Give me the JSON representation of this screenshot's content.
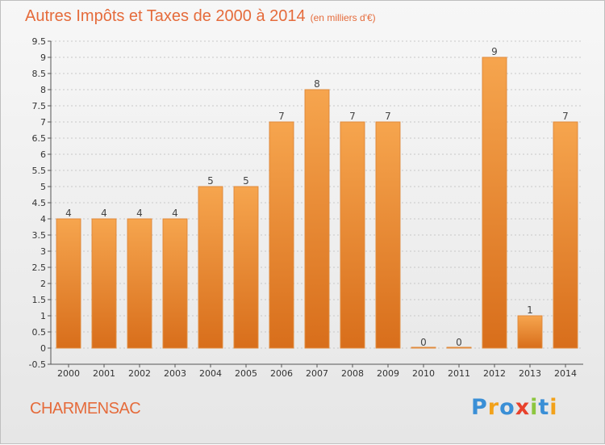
{
  "title": "Autres Impôts et Taxes de 2000 à 2014",
  "unit_label": "(en milliers d'€)",
  "commune": "CHARMENSAC",
  "logo": {
    "letters": [
      "P",
      "r",
      "o",
      "x",
      "i",
      "t",
      "i"
    ],
    "colors": [
      "#3a8fd6",
      "#f2a21b",
      "#3a8fd6",
      "#e8412c",
      "#8dc63f",
      "#3a8fd6",
      "#f2a21b"
    ]
  },
  "colors": {
    "bar_top": "#f6a54e",
    "bar_bottom": "#d86e1b",
    "title": "#e56b3b",
    "grid": "#c8c8c8"
  },
  "chart_data": {
    "type": "bar",
    "title": "Autres Impôts et Taxes de 2000 à 2014",
    "categories": [
      "2000",
      "2001",
      "2002",
      "2003",
      "2004",
      "2005",
      "2006",
      "2007",
      "2008",
      "2009",
      "2010",
      "2011",
      "2012",
      "2013",
      "2014"
    ],
    "values": [
      4,
      4,
      4,
      4,
      5,
      5,
      7,
      8,
      7,
      7,
      0,
      0,
      9,
      1,
      7
    ],
    "data_labels": [
      "4",
      "4",
      "4",
      "4",
      "5",
      "5",
      "7",
      "8",
      "7",
      "7",
      "0",
      "0",
      "9",
      "1",
      "7"
    ],
    "ylim": [
      -0.5,
      9.5
    ],
    "yticks": [
      "9.5",
      "9",
      "8.5",
      "8",
      "7.5",
      "7",
      "6.5",
      "6",
      "5.5",
      "5",
      "4.5",
      "4",
      "3.5",
      "3",
      "2.5",
      "2",
      "1.5",
      "1",
      "0.5",
      "0",
      "-0.5"
    ],
    "ytick_values": [
      9.5,
      9,
      8.5,
      8,
      7.5,
      7,
      6.5,
      6,
      5.5,
      5,
      4.5,
      4,
      3.5,
      3,
      2.5,
      2,
      1.5,
      1,
      0.5,
      0,
      -0.5
    ],
    "grid": true,
    "legend": "none"
  }
}
